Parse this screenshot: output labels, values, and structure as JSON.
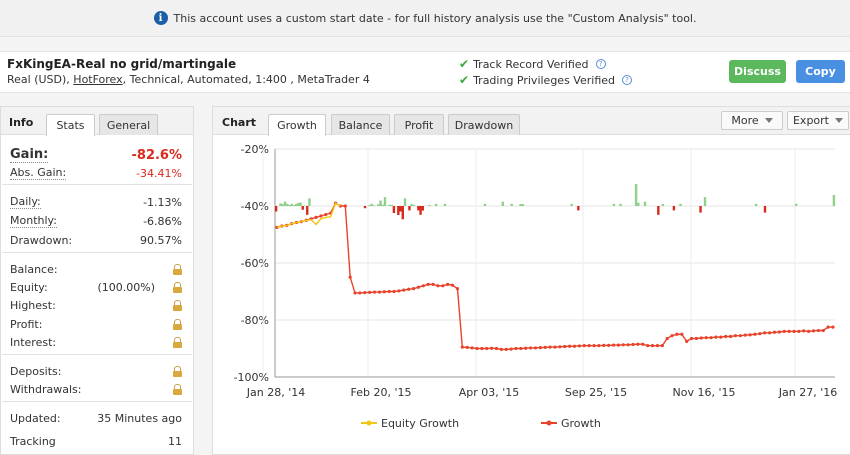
{
  "notice": {
    "icon": "info-icon",
    "text": "This account uses a custom start date - for full history analysis use the \"Custom Analysis\" tool."
  },
  "account": {
    "title": "FxKingEA-Real no grid/martingale",
    "desc_pre": "Real (USD), ",
    "broker": "HotForex",
    "desc_post": ", Technical, Automated, 1:400 , MetaTrader 4",
    "verify": [
      "Track Record Verified",
      "Trading Privileges Verified"
    ],
    "discuss_label": "Discuss",
    "copy_label": "Copy"
  },
  "left_panel": {
    "heading": "Info",
    "tabs": [
      "Stats",
      "General"
    ],
    "active_tab": "Stats",
    "gain_label": "Gain:",
    "gain_value": "-82.6%",
    "abs_gain_label": "Abs. Gain:",
    "abs_gain_value": "-34.41%",
    "daily_label": "Daily:",
    "daily_value": "-1.13%",
    "monthly_label": "Monthly:",
    "monthly_value": "-6.86%",
    "drawdown_label": "Drawdown:",
    "drawdown_value": "90.57%",
    "balance_label": "Balance:",
    "equity_label": "Equity:",
    "equity_value": "(100.00%)",
    "highest_label": "Highest:",
    "profit_label": "Profit:",
    "interest_label": "Interest:",
    "deposits_label": "Deposits:",
    "withdrawals_label": "Withdrawals:",
    "updated_label": "Updated:",
    "updated_value": "35 Minutes ago",
    "tracking_label": "Tracking",
    "tracking_value": "11"
  },
  "chart_panel": {
    "heading": "Chart",
    "tabs": [
      "Growth",
      "Balance",
      "Profit",
      "Drawdown"
    ],
    "active_tab": "Growth",
    "more_label": "More",
    "export_label": "Export"
  },
  "chart_data": {
    "type": "line",
    "y_ticks": [
      "-20%",
      "-40%",
      "-60%",
      "-80%",
      "-100%"
    ],
    "ylim": [
      -100,
      -20
    ],
    "x_ticks": [
      "Jan 28, '14",
      "Feb 20, '15",
      "Apr 03, '15",
      "Sep 25, '15",
      "Nov 16, '15",
      "Jan 27, '16"
    ],
    "series": [
      {
        "name": "Equity Growth",
        "color": "#f2c511",
        "values": [
          -47.5,
          -47,
          -46.8,
          -46.2,
          -45.8,
          -45.5,
          -45,
          -44.8,
          -46.5,
          -44.5,
          -44,
          -43.8,
          -39,
          -40
        ]
      },
      {
        "name": "Growth",
        "color": "#e8432a",
        "values": [
          -47.5,
          -47,
          -46.8,
          -46.2,
          -45.8,
          -45.5,
          -45,
          -44.5,
          -44,
          -43.5,
          -43,
          -42.5,
          -39,
          -40,
          -40,
          -65,
          -70.5,
          -70.5,
          -70.4,
          -70.3,
          -70.2,
          -70.2,
          -70.1,
          -70,
          -70,
          -69.8,
          -69.5,
          -69.2,
          -69,
          -68.5,
          -68,
          -67.5,
          -67.5,
          -68,
          -68,
          -67.5,
          -67.8,
          -69,
          -89.5,
          -89.6,
          -89.8,
          -90,
          -90,
          -90,
          -89.9,
          -90,
          -90.3,
          -90.3,
          -90.2,
          -90,
          -90,
          -89.9,
          -89.8,
          -89.8,
          -89.7,
          -89.6,
          -89.5,
          -89.5,
          -89.4,
          -89.3,
          -89.2,
          -89.2,
          -89.1,
          -89,
          -89,
          -89,
          -89,
          -88.9,
          -88.9,
          -88.8,
          -88.8,
          -88.7,
          -88.7,
          -88.6,
          -88.5,
          -88.5,
          -89,
          -89,
          -89,
          -89,
          -86.5,
          -85.5,
          -85,
          -85,
          -87.5,
          -86.5,
          -86.5,
          -86.3,
          -86.2,
          -86.2,
          -86,
          -86,
          -85.8,
          -85.8,
          -85.5,
          -85.5,
          -85.3,
          -85.2,
          -85,
          -84.8,
          -84.5,
          -84.5,
          -84.3,
          -84.2,
          -84,
          -84,
          -84,
          -84,
          -83.8,
          -84,
          -83.8,
          -83.7,
          -83.7,
          -82.5,
          -82.5
        ]
      }
    ],
    "daily_bars": [
      -2.5,
      0,
      1.2,
      0.8,
      2,
      1,
      0.5,
      1,
      0.4,
      0.9,
      1.4,
      1.6,
      -1.7,
      0.2,
      -4,
      3.5,
      0,
      0,
      0,
      0,
      0,
      0,
      0,
      0,
      0,
      0,
      0,
      0,
      0,
      0,
      0,
      0,
      0,
      0,
      0,
      0,
      0,
      0,
      0,
      0,
      -1,
      0,
      0.4,
      1,
      0.3,
      0,
      0.8,
      2.5,
      0.6,
      4,
      0,
      0.6,
      0.5,
      -3.2,
      0,
      -4.1,
      -2.5,
      -6,
      3.5,
      0,
      -2,
      1,
      0.5,
      0,
      -2,
      -4,
      -2.1,
      0,
      0,
      0.5,
      0,
      0,
      1,
      0,
      0,
      0,
      1,
      0,
      0,
      0,
      0,
      0,
      0,
      0,
      0,
      0,
      0,
      0,
      0,
      0,
      0,
      0,
      0,
      0,
      1,
      0,
      0,
      0,
      0,
      0,
      0,
      0,
      2,
      0,
      0,
      0,
      1,
      0,
      0,
      0,
      0.9,
      0.9,
      0,
      0,
      0,
      0,
      0,
      0,
      0,
      0,
      0,
      0,
      0,
      0,
      0,
      0,
      0,
      0,
      0,
      0,
      0,
      0,
      0,
      1,
      0,
      0,
      -2,
      0,
      0,
      0,
      0,
      0,
      0,
      0,
      0,
      0,
      0,
      0,
      0,
      0,
      0,
      0,
      1,
      0,
      0,
      1,
      0,
      0,
      0,
      0,
      0,
      0,
      10,
      1.5,
      0,
      0,
      2,
      0,
      0,
      0,
      0,
      0,
      -4,
      0,
      0.9,
      0,
      0,
      0,
      0,
      -2,
      0,
      0,
      1,
      0,
      0,
      0,
      0,
      0,
      0,
      0,
      0,
      -3,
      0,
      4,
      0,
      0,
      0,
      0,
      0,
      0,
      0,
      0,
      0,
      0,
      0,
      0,
      0,
      0,
      0,
      0,
      0,
      0,
      0,
      0,
      0,
      0,
      1,
      0,
      0,
      0,
      -3,
      0,
      0,
      0,
      0,
      0,
      0,
      0,
      0,
      0,
      0,
      0,
      0,
      0,
      1,
      0,
      0,
      0,
      0,
      0,
      0,
      0,
      0,
      0,
      0,
      0,
      0,
      0,
      0,
      0,
      0,
      5
    ]
  },
  "legend": {
    "equity": "Equity Growth",
    "growth": "Growth"
  },
  "colors": {
    "loss": "#d9291c",
    "bar_pos": "#8fd08a",
    "bar_neg": "#d9291c",
    "discuss": "#5cb85c",
    "copy": "#4a90e2"
  }
}
